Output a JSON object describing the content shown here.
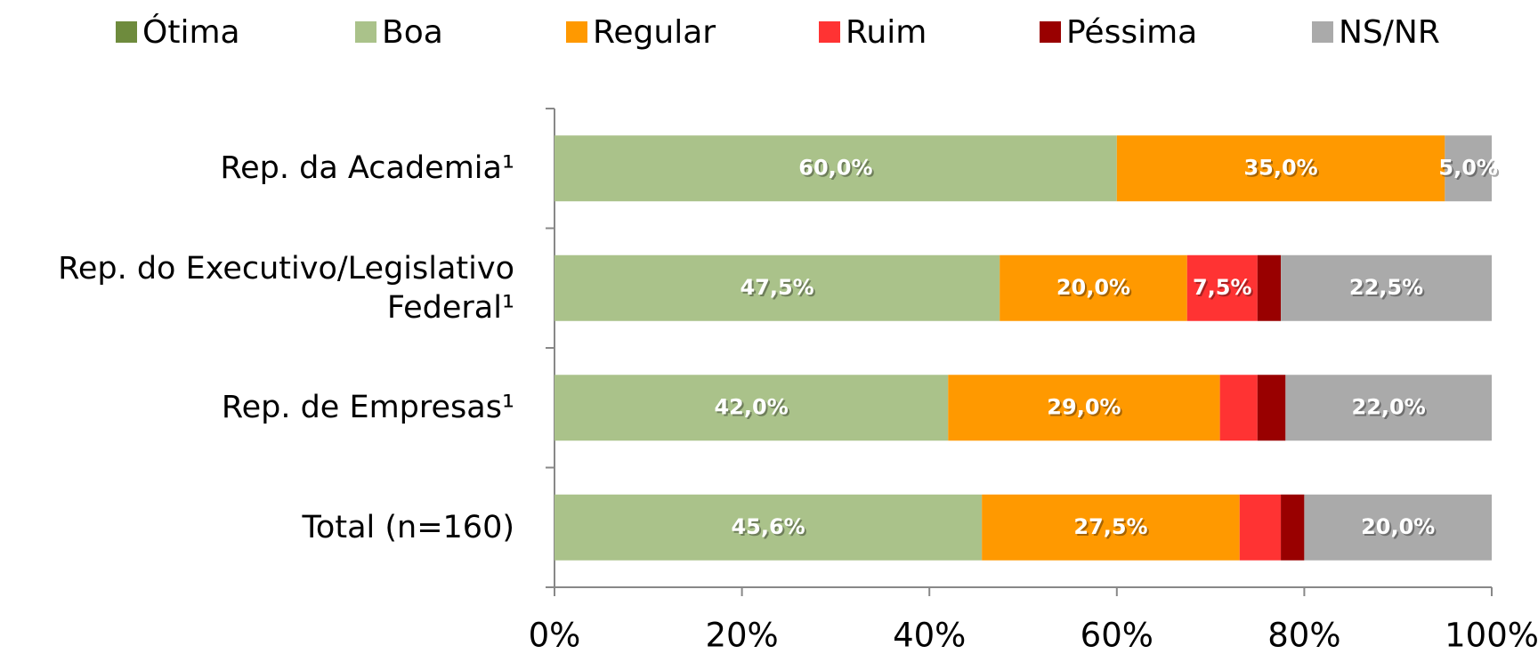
{
  "chart_data": {
    "type": "stacked-barh",
    "categories": [
      "Rep. da Academia¹",
      "Rep. do Executivo/Legislativo\nFederal¹",
      "Rep. de Empresas¹",
      "Total (n=160)"
    ],
    "series": [
      {
        "name": "Ótima",
        "color": "#6e8b3d",
        "values": [
          0,
          0,
          0,
          0
        ],
        "value_labels": [
          null,
          null,
          null,
          null
        ]
      },
      {
        "name": "Boa",
        "color": "#aac28a",
        "values": [
          60,
          47.5,
          42,
          45.6
        ],
        "value_labels": [
          "60,0%",
          "47,5%",
          "42,0%",
          "45,6%"
        ]
      },
      {
        "name": "Regular",
        "color": "#ff9900",
        "values": [
          35,
          20,
          29,
          27.5
        ],
        "value_labels": [
          "35,0%",
          "20,0%",
          "29,0%",
          "27,5%"
        ]
      },
      {
        "name": "Ruim",
        "color": "#ff3333",
        "values": [
          0,
          7.5,
          4,
          4.4
        ],
        "value_labels": [
          null,
          "7,5%",
          null,
          null
        ]
      },
      {
        "name": "Péssima",
        "color": "#990000",
        "values": [
          0,
          2.5,
          3,
          2.5
        ],
        "value_labels": [
          null,
          null,
          null,
          null
        ]
      },
      {
        "name": "NS/NR",
        "color": "#aaaaaa",
        "values": [
          5,
          22.5,
          22,
          20
        ],
        "value_labels": [
          "5,0%",
          "22,5%",
          "22,0%",
          "20,0%"
        ]
      }
    ],
    "xlim": [
      0,
      100
    ],
    "xticks": [
      {
        "value": 0,
        "label": "0%"
      },
      {
        "value": 20,
        "label": "20%"
      },
      {
        "value": 40,
        "label": "40%"
      },
      {
        "value": 60,
        "label": "60%"
      },
      {
        "value": 80,
        "label": "80%"
      },
      {
        "value": 100,
        "label": "100%"
      }
    ],
    "legend": "top"
  }
}
